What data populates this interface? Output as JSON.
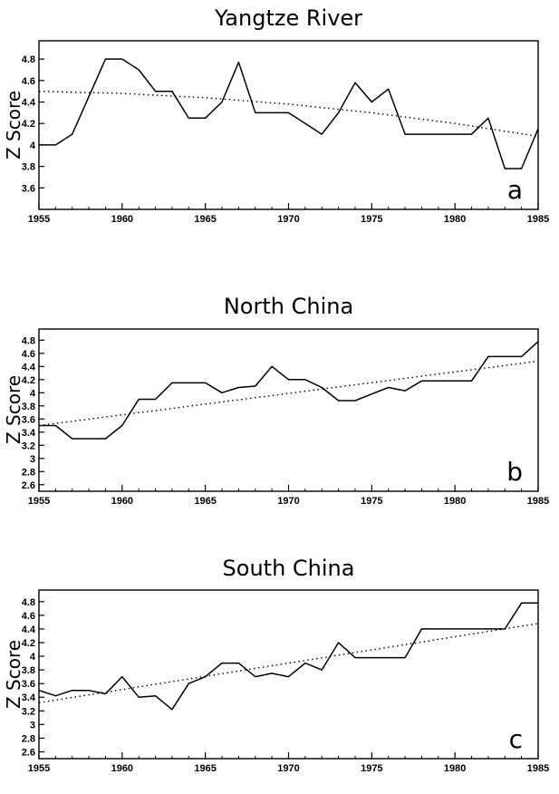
{
  "chart_data": [
    {
      "type": "line",
      "title": "Yangtze River",
      "ylabel": "Z Score",
      "panel_label": "a",
      "xlim": [
        1955,
        1985
      ],
      "ylim": [
        3.4,
        4.97
      ],
      "xticks": [
        1955,
        1960,
        1965,
        1970,
        1975,
        1980,
        1985
      ],
      "yticks": [
        3.6,
        3.8,
        4,
        4.2,
        4.4,
        4.6,
        4.8
      ],
      "grid": false,
      "series": [
        {
          "style": "solid",
          "x": [
            1955,
            1956,
            1957,
            1958,
            1959,
            1960,
            1961,
            1962,
            1963,
            1964,
            1965,
            1966,
            1967,
            1968,
            1969,
            1970,
            1971,
            1972,
            1973,
            1974,
            1975,
            1976,
            1977,
            1978,
            1979,
            1980,
            1981,
            1982,
            1983,
            1984,
            1985
          ],
          "values": [
            4.0,
            4.0,
            4.1,
            4.45,
            4.8,
            4.8,
            4.7,
            4.5,
            4.5,
            4.25,
            4.25,
            4.4,
            4.77,
            4.3,
            4.3,
            4.3,
            4.2,
            4.1,
            4.3,
            4.58,
            4.4,
            4.52,
            4.1,
            4.1,
            4.1,
            4.1,
            4.1,
            4.25,
            3.78,
            3.78,
            4.15
          ]
        },
        {
          "style": "dotted",
          "x": [
            1955,
            1960,
            1965,
            1970,
            1975,
            1980,
            1985
          ],
          "values": [
            4.5,
            4.48,
            4.44,
            4.38,
            4.3,
            4.2,
            4.08
          ]
        }
      ]
    },
    {
      "type": "line",
      "title": "North China",
      "ylabel": "Z Score",
      "panel_label": "b",
      "xlim": [
        1955,
        1985
      ],
      "ylim": [
        2.5,
        4.97
      ],
      "xticks": [
        1955,
        1960,
        1965,
        1970,
        1975,
        1980,
        1985
      ],
      "yticks": [
        2.6,
        2.8,
        3,
        3.2,
        3.4,
        3.6,
        3.8,
        4,
        4.2,
        4.4,
        4.6,
        4.8
      ],
      "grid": false,
      "series": [
        {
          "style": "solid",
          "x": [
            1955,
            1956,
            1957,
            1958,
            1959,
            1960,
            1961,
            1962,
            1963,
            1964,
            1965,
            1966,
            1967,
            1968,
            1969,
            1970,
            1971,
            1972,
            1973,
            1974,
            1975,
            1976,
            1977,
            1978,
            1979,
            1980,
            1981,
            1982,
            1983,
            1984,
            1985
          ],
          "values": [
            3.5,
            3.5,
            3.3,
            3.3,
            3.3,
            3.5,
            3.9,
            3.9,
            4.15,
            4.15,
            4.15,
            4.0,
            4.08,
            4.1,
            4.4,
            4.2,
            4.2,
            4.08,
            3.88,
            3.88,
            3.98,
            4.08,
            4.03,
            4.18,
            4.18,
            4.18,
            4.18,
            4.55,
            4.55,
            4.55,
            4.78
          ]
        },
        {
          "style": "dotted",
          "x": [
            1955,
            1985
          ],
          "values": [
            3.5,
            4.48
          ]
        }
      ]
    },
    {
      "type": "line",
      "title": "South China",
      "ylabel": "Z Score",
      "panel_label": "c",
      "xlim": [
        1955,
        1985
      ],
      "ylim": [
        2.5,
        4.97
      ],
      "xticks": [
        1955,
        1960,
        1965,
        1970,
        1975,
        1980,
        1985
      ],
      "yticks": [
        2.6,
        2.8,
        3,
        3.2,
        3.4,
        3.6,
        3.8,
        4,
        4.2,
        4.4,
        4.6,
        4.8
      ],
      "grid": false,
      "series": [
        {
          "style": "solid",
          "x": [
            1955,
            1956,
            1957,
            1958,
            1959,
            1960,
            1961,
            1962,
            1963,
            1964,
            1965,
            1966,
            1967,
            1968,
            1969,
            1970,
            1971,
            1972,
            1973,
            1974,
            1975,
            1976,
            1977,
            1978,
            1979,
            1980,
            1981,
            1982,
            1983,
            1984,
            1985
          ],
          "values": [
            3.5,
            3.42,
            3.5,
            3.5,
            3.45,
            3.7,
            3.4,
            3.42,
            3.22,
            3.6,
            3.7,
            3.9,
            3.9,
            3.7,
            3.75,
            3.7,
            3.9,
            3.8,
            4.2,
            3.98,
            3.98,
            3.98,
            3.98,
            4.4,
            4.4,
            4.4,
            4.4,
            4.4,
            4.4,
            4.78,
            4.78
          ]
        },
        {
          "style": "dotted",
          "x": [
            1955,
            1985
          ],
          "values": [
            3.32,
            4.48
          ]
        }
      ]
    }
  ]
}
